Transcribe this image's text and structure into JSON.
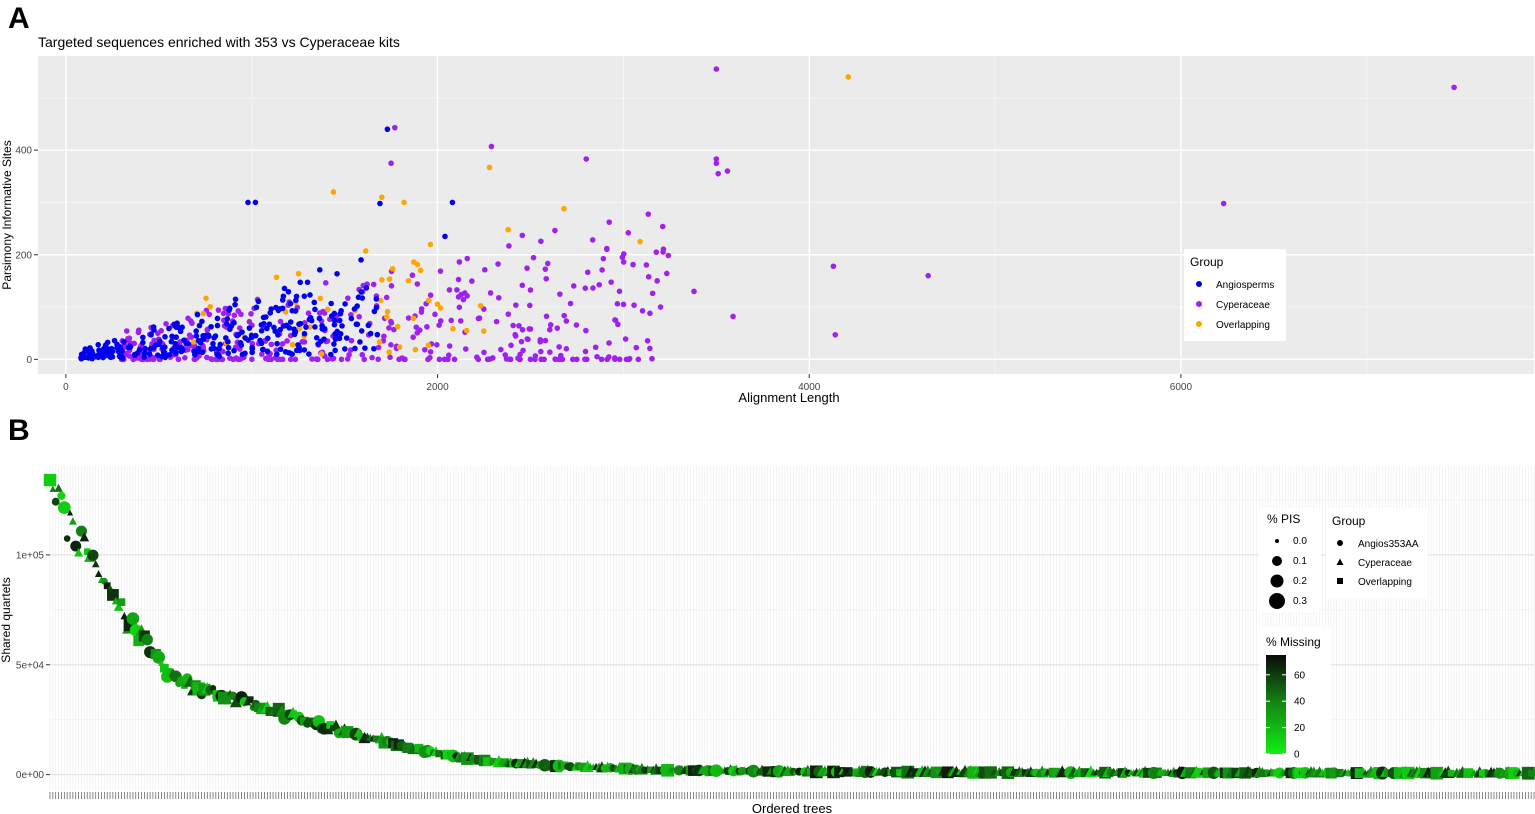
{
  "chart_data": [
    {
      "panel": "A",
      "type": "scatter",
      "title": "Targeted sequences enriched with 353 vs Cyperaceae kits",
      "xlabel": "Alignment Length",
      "ylabel": "Parsimony Informative Sites",
      "xlim": [
        -150,
        7900
      ],
      "ylim": [
        -28,
        580
      ],
      "xticks": [
        0,
        2000,
        4000,
        6000
      ],
      "yticks": [
        0,
        200,
        400
      ],
      "grid": true,
      "legend": {
        "title": "Group",
        "placement": "right",
        "entries": [
          "Angiosperms",
          "Cyperaceae",
          "Overlapping"
        ]
      },
      "colors": {
        "Angiosperms": "#0000ee",
        "Cyperaceae": "#a020f0",
        "Overlapping": "#ffa500"
      },
      "highlighted_points": {
        "Cyperaceae": [
          [
            3500,
            555
          ],
          [
            7470,
            520
          ],
          [
            1770,
            443
          ],
          [
            2290,
            407
          ],
          [
            2800,
            383
          ],
          [
            3500,
            383
          ],
          [
            3500,
            375
          ],
          [
            3510,
            355
          ],
          [
            3560,
            360
          ],
          [
            6230,
            298
          ],
          [
            4130,
            178
          ],
          [
            4640,
            160
          ],
          [
            4140,
            47
          ],
          [
            3200,
            100
          ],
          [
            3380,
            130
          ],
          [
            3590,
            82
          ],
          [
            1750,
            375
          ]
        ],
        "Overlapping": [
          [
            4210,
            540
          ],
          [
            1440,
            320
          ],
          [
            2280,
            367
          ],
          [
            2380,
            248
          ],
          [
            2680,
            288
          ],
          [
            3090,
            225
          ],
          [
            1820,
            300
          ],
          [
            1700,
            310
          ]
        ],
        "Angiosperms": [
          [
            1730,
            440
          ],
          [
            2080,
            300
          ],
          [
            1690,
            298
          ],
          [
            1020,
            300
          ],
          [
            980,
            300
          ],
          [
            2040,
            235
          ]
        ]
      },
      "cluster_region": {
        "Angiosperms": {
          "x": [
            80,
            1750
          ],
          "y": [
            0,
            300
          ]
        },
        "Cyperaceae": {
          "x": [
            300,
            3300
          ],
          "y": [
            0,
            330
          ]
        },
        "Overlapping": {
          "x": [
            500,
            2500
          ],
          "y": [
            0,
            320
          ]
        }
      },
      "cluster_counts": {
        "Angiosperms": 300,
        "Cyperaceae": 440,
        "Overlapping": 45
      }
    },
    {
      "panel": "B",
      "type": "scatter",
      "xlabel": "Ordered trees",
      "ylabel": "Shared quartets",
      "xlim": [
        0,
        1
      ],
      "ylim": [
        -7000,
        140000
      ],
      "yticks": [
        0,
        50000,
        100000
      ],
      "ytick_labels": [
        "0e+00",
        "5e+04",
        "1e+05"
      ],
      "trend": {
        "x": [
          0.0,
          0.01,
          0.03,
          0.05,
          0.08,
          0.12,
          0.16,
          0.2,
          0.25,
          0.3,
          0.4,
          0.5,
          0.6,
          0.75,
          0.9,
          1.0
        ],
        "y": [
          132000,
          115000,
          96000,
          72000,
          44000,
          35000,
          27000,
          19000,
          11000,
          5500,
          2200,
          1300,
          1000,
          800,
          700,
          600
        ]
      },
      "tree_count": 520,
      "legend_pis": {
        "title": "% PIS",
        "entries": [
          "0.0",
          "0.1",
          "0.2",
          "0.3"
        ]
      },
      "legend_group": {
        "title": "Group",
        "entries": [
          "Angios353AA",
          "Cyperaceae",
          "Overlapping"
        ]
      },
      "legend_missing": {
        "title": "% Missing",
        "ticks": [
          0,
          20,
          40,
          60
        ],
        "colors": [
          "#11ee11",
          "#0a0a0a"
        ],
        "max": 75
      }
    }
  ],
  "panel_labels": [
    "A",
    "B"
  ]
}
